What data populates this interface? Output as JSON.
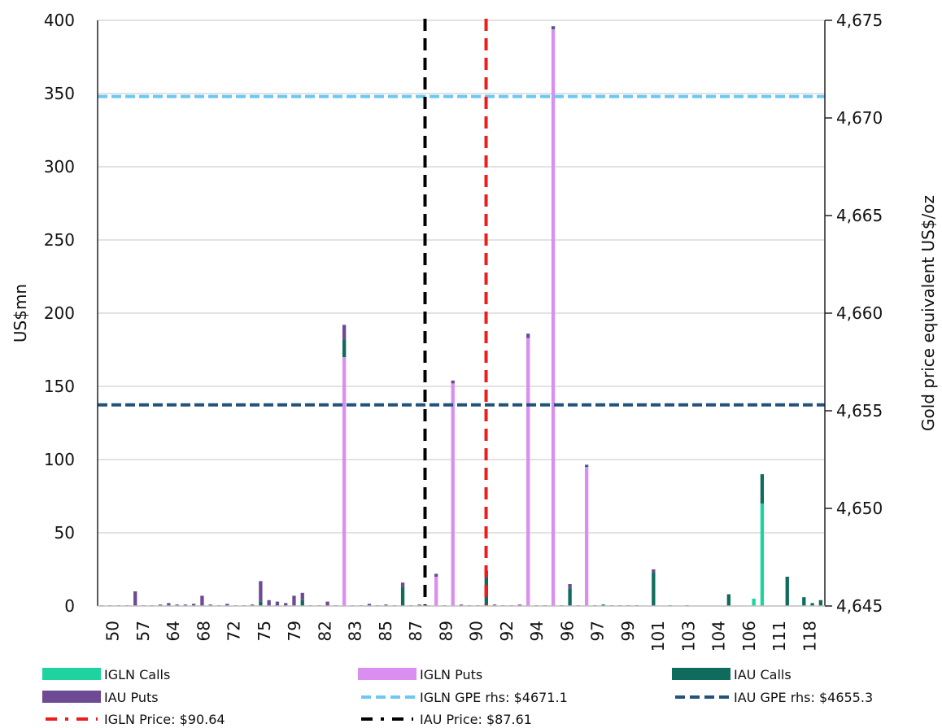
{
  "chart_data": {
    "type": "bar",
    "stacked": true,
    "ylabel": "US$mn",
    "y2label": "Gold price equivalent US$/oz",
    "ylim": [
      0,
      400
    ],
    "y_ticks": [
      "0",
      "50",
      "100",
      "150",
      "200",
      "250",
      "300",
      "350",
      "400"
    ],
    "y2lim": [
      4645,
      4675
    ],
    "y2_ticks": [
      "4,645",
      "4,650",
      "4,655",
      "4,660",
      "4,665",
      "4,670",
      "4,675"
    ],
    "grid": true,
    "legend_position": "bottom",
    "x_tick_labels": [
      "50",
      "57",
      "64",
      "68",
      "72",
      "75",
      "79",
      "82",
      "83",
      "85",
      "87",
      "89",
      "90",
      "92",
      "94",
      "96",
      "97",
      "99",
      "101",
      "103",
      "104",
      "106",
      "111",
      "118"
    ],
    "bar_groups": [
      {
        "iglnCalls": 0,
        "iglnPuts": 0,
        "iauCalls": 0,
        "iauPuts": 0.5
      },
      {
        "iglnCalls": 0,
        "iglnPuts": 0,
        "iauCalls": 0,
        "iauPuts": 0.5
      },
      {
        "iglnCalls": 0,
        "iglnPuts": 0,
        "iauCalls": 0,
        "iauPuts": 0.5
      },
      {
        "iglnCalls": 0,
        "iglnPuts": 0,
        "iauCalls": 0,
        "iauPuts": 0.5
      },
      {
        "iglnCalls": 0,
        "iglnPuts": 0,
        "iauCalls": 0,
        "iauPuts": 10
      },
      {
        "iglnCalls": 0,
        "iglnPuts": 0,
        "iauCalls": 0,
        "iauPuts": 0.5
      },
      {
        "iglnCalls": 0,
        "iglnPuts": 0,
        "iauCalls": 0,
        "iauPuts": 0.5
      },
      {
        "iglnCalls": 0,
        "iglnPuts": 0,
        "iauCalls": 0,
        "iauPuts": 1
      },
      {
        "iglnCalls": 0,
        "iglnPuts": 0,
        "iauCalls": 0,
        "iauPuts": 2
      },
      {
        "iglnCalls": 0,
        "iglnPuts": 0,
        "iauCalls": 0,
        "iauPuts": 1
      },
      {
        "iglnCalls": 0,
        "iglnPuts": 0,
        "iauCalls": 0,
        "iauPuts": 1
      },
      {
        "iglnCalls": 0,
        "iglnPuts": 0,
        "iauCalls": 0,
        "iauPuts": 1.5
      },
      {
        "iglnCalls": 0,
        "iglnPuts": 0,
        "iauCalls": 0,
        "iauPuts": 7
      },
      {
        "iglnCalls": 0,
        "iglnPuts": 0,
        "iauCalls": 0,
        "iauPuts": 1
      },
      {
        "iglnCalls": 0,
        "iglnPuts": 0,
        "iauCalls": 0,
        "iauPuts": 0.5
      },
      {
        "iglnCalls": 0,
        "iglnPuts": 0,
        "iauCalls": 0,
        "iauPuts": 1.5
      },
      {
        "iglnCalls": 0,
        "iglnPuts": 0,
        "iauCalls": 0,
        "iauPuts": 0.5
      },
      {
        "iglnCalls": 0,
        "iglnPuts": 0,
        "iauCalls": 0,
        "iauPuts": 0.5
      },
      {
        "iglnCalls": 0,
        "iglnPuts": 0,
        "iauCalls": 0,
        "iauPuts": 1
      },
      {
        "iglnCalls": 0,
        "iglnPuts": 0,
        "iauCalls": 3,
        "iauPuts": 14
      },
      {
        "iglnCalls": 0,
        "iglnPuts": 0,
        "iauCalls": 0,
        "iauPuts": 4
      },
      {
        "iglnCalls": 0,
        "iglnPuts": 0,
        "iauCalls": 0,
        "iauPuts": 3
      },
      {
        "iglnCalls": 0,
        "iglnPuts": 0,
        "iauCalls": 0,
        "iauPuts": 2
      },
      {
        "iglnCalls": 0,
        "iglnPuts": 0,
        "iauCalls": 0,
        "iauPuts": 7
      },
      {
        "iglnCalls": 0,
        "iglnPuts": 0,
        "iauCalls": 4,
        "iauPuts": 5
      },
      {
        "iglnCalls": 0,
        "iglnPuts": 0,
        "iauCalls": 0,
        "iauPuts": 0.5
      },
      {
        "iglnCalls": 0,
        "iglnPuts": 0,
        "iauCalls": 0,
        "iauPuts": 0.5
      },
      {
        "iglnCalls": 0,
        "iglnPuts": 0,
        "iauCalls": 0,
        "iauPuts": 3
      },
      {
        "iglnCalls": 0,
        "iglnPuts": 0,
        "iauCalls": 0,
        "iauPuts": 0.5
      },
      {
        "iglnCalls": 0,
        "iglnPuts": 170,
        "iauCalls": 12,
        "iauPuts": 10
      },
      {
        "iglnCalls": 0,
        "iglnPuts": 0,
        "iauCalls": 0,
        "iauPuts": 0.5
      },
      {
        "iglnCalls": 0,
        "iglnPuts": 0,
        "iauCalls": 0,
        "iauPuts": 0.5
      },
      {
        "iglnCalls": 0,
        "iglnPuts": 0,
        "iauCalls": 0,
        "iauPuts": 1.5
      },
      {
        "iglnCalls": 0,
        "iglnPuts": 0,
        "iauCalls": 0,
        "iauPuts": 0.5
      },
      {
        "iglnCalls": 0,
        "iglnPuts": 0,
        "iauCalls": 0,
        "iauPuts": 1
      },
      {
        "iglnCalls": 0,
        "iglnPuts": 0,
        "iauCalls": 0,
        "iauPuts": 0.5
      },
      {
        "iglnCalls": 0,
        "iglnPuts": 0,
        "iauCalls": 13,
        "iauPuts": 3
      },
      {
        "iglnCalls": 0,
        "iglnPuts": 0,
        "iauCalls": 0,
        "iauPuts": 0.5
      },
      {
        "iglnCalls": 0,
        "iglnPuts": 0,
        "iauCalls": 0,
        "iauPuts": 1
      },
      {
        "iglnCalls": 0,
        "iglnPuts": 0,
        "iauCalls": 0,
        "iauPuts": 0.5
      },
      {
        "iglnCalls": 0,
        "iglnPuts": 20,
        "iauCalls": 0,
        "iauPuts": 2
      },
      {
        "iglnCalls": 0,
        "iglnPuts": 0,
        "iauCalls": 0,
        "iauPuts": 0.5
      },
      {
        "iglnCalls": 0,
        "iglnPuts": 152,
        "iauCalls": 0,
        "iauPuts": 2
      },
      {
        "iglnCalls": 0,
        "iglnPuts": 0,
        "iauCalls": 0,
        "iauPuts": 1
      },
      {
        "iglnCalls": 0,
        "iglnPuts": 0,
        "iauCalls": 0,
        "iauPuts": 0.5
      },
      {
        "iglnCalls": 0,
        "iglnPuts": 0,
        "iauCalls": 0,
        "iauPuts": 0.5
      },
      {
        "iglnCalls": 0,
        "iglnPuts": 0,
        "iauCalls": 20,
        "iauPuts": 4
      },
      {
        "iglnCalls": 0,
        "iglnPuts": 0,
        "iauCalls": 0,
        "iauPuts": 1
      },
      {
        "iglnCalls": 0,
        "iglnPuts": 0,
        "iauCalls": 0,
        "iauPuts": 0.5
      },
      {
        "iglnCalls": 0,
        "iglnPuts": 0,
        "iauCalls": 0,
        "iauPuts": 0.5
      },
      {
        "iglnCalls": 0,
        "iglnPuts": 0,
        "iauCalls": 0,
        "iauPuts": 1
      },
      {
        "iglnCalls": 0,
        "iglnPuts": 183,
        "iauCalls": 0,
        "iauPuts": 3
      },
      {
        "iglnCalls": 0,
        "iglnPuts": 0,
        "iauCalls": 0,
        "iauPuts": 0.5
      },
      {
        "iglnCalls": 0,
        "iglnPuts": 0,
        "iauCalls": 0,
        "iauPuts": 0.5
      },
      {
        "iglnCalls": 0,
        "iglnPuts": 394,
        "iauCalls": 1,
        "iauPuts": 1
      },
      {
        "iglnCalls": 0,
        "iglnPuts": 0,
        "iauCalls": 0,
        "iauPuts": 0.5
      },
      {
        "iglnCalls": 0,
        "iglnPuts": 0,
        "iauCalls": 12,
        "iauPuts": 3
      },
      {
        "iglnCalls": 0,
        "iglnPuts": 0,
        "iauCalls": 0,
        "iauPuts": 0.5
      },
      {
        "iglnCalls": 0,
        "iglnPuts": 95,
        "iauCalls": 1,
        "iauPuts": 0.5
      },
      {
        "iglnCalls": 0,
        "iglnPuts": 0,
        "iauCalls": 0,
        "iauPuts": 0.5
      },
      {
        "iglnCalls": 0,
        "iglnPuts": 0,
        "iauCalls": 1,
        "iauPuts": 0
      },
      {
        "iglnCalls": 0,
        "iglnPuts": 0,
        "iauCalls": 0,
        "iauPuts": 0.5
      },
      {
        "iglnCalls": 0,
        "iglnPuts": 0,
        "iauCalls": 0,
        "iauPuts": 0.5
      },
      {
        "iglnCalls": 0,
        "iglnPuts": 0,
        "iauCalls": 0,
        "iauPuts": 0.5
      },
      {
        "iglnCalls": 0,
        "iglnPuts": 0,
        "iauCalls": 0.5,
        "iauPuts": 0
      },
      {
        "iglnCalls": 0,
        "iglnPuts": 0,
        "iauCalls": 0,
        "iauPuts": 0
      },
      {
        "iglnCalls": 0,
        "iglnPuts": 0,
        "iauCalls": 23,
        "iauPuts": 2
      },
      {
        "iglnCalls": 0,
        "iglnPuts": 0,
        "iauCalls": 0,
        "iauPuts": 0
      },
      {
        "iglnCalls": 0,
        "iglnPuts": 0,
        "iauCalls": 0.5,
        "iauPuts": 0
      },
      {
        "iglnCalls": 0,
        "iglnPuts": 0,
        "iauCalls": 0,
        "iauPuts": 0
      },
      {
        "iglnCalls": 0,
        "iglnPuts": 0,
        "iauCalls": 0.5,
        "iauPuts": 0
      },
      {
        "iglnCalls": 0,
        "iglnPuts": 0,
        "iauCalls": 0,
        "iauPuts": 0
      },
      {
        "iglnCalls": 0,
        "iglnPuts": 0,
        "iauCalls": 0,
        "iauPuts": 0
      },
      {
        "iglnCalls": 0,
        "iglnPuts": 0,
        "iauCalls": 0,
        "iauPuts": 0
      },
      {
        "iglnCalls": 0,
        "iglnPuts": 0,
        "iauCalls": 0,
        "iauPuts": 0
      },
      {
        "iglnCalls": 0,
        "iglnPuts": 0,
        "iauCalls": 8,
        "iauPuts": 0
      },
      {
        "iglnCalls": 0,
        "iglnPuts": 0,
        "iauCalls": 0,
        "iauPuts": 0
      },
      {
        "iglnCalls": 0,
        "iglnPuts": 0,
        "iauCalls": 0,
        "iauPuts": 0
      },
      {
        "iglnCalls": 5,
        "iglnPuts": 0,
        "iauCalls": 0,
        "iauPuts": 0
      },
      {
        "iglnCalls": 70,
        "iglnPuts": 0,
        "iauCalls": 20,
        "iauPuts": 0
      },
      {
        "iglnCalls": 0,
        "iglnPuts": 0,
        "iauCalls": 0,
        "iauPuts": 0
      },
      {
        "iglnCalls": 0,
        "iglnPuts": 0,
        "iauCalls": 0,
        "iauPuts": 0
      },
      {
        "iglnCalls": 0,
        "iglnPuts": 0,
        "iauCalls": 20,
        "iauPuts": 0
      },
      {
        "iglnCalls": 0,
        "iglnPuts": 0,
        "iauCalls": 0,
        "iauPuts": 0
      },
      {
        "iglnCalls": 0,
        "iglnPuts": 0,
        "iauCalls": 6,
        "iauPuts": 0
      },
      {
        "iglnCalls": 0,
        "iglnPuts": 0,
        "iauCalls": 2,
        "iauPuts": 0
      },
      {
        "iglnCalls": 0,
        "iglnPuts": 0,
        "iauCalls": 4,
        "iauPuts": 0
      }
    ],
    "series": [
      {
        "name": "IGLN Calls",
        "key": "iglnCalls",
        "color": "#1fd3a0"
      },
      {
        "name": "IGLN Puts",
        "key": "iglnPuts",
        "color": "#da8ff0"
      },
      {
        "name": "IAU Calls",
        "key": "iauCalls",
        "color": "#0f6b5b"
      },
      {
        "name": "IAU Puts",
        "key": "iauPuts",
        "color": "#6e4a94"
      }
    ],
    "reference_lines": [
      {
        "name": "IGLN GPE rhs: $4671.1",
        "orientation": "horizontal",
        "axis": "y2",
        "value": 4671.1,
        "color": "#6cc8f2",
        "style": "dashed"
      },
      {
        "name": "IAU GPE rhs: $4655.3",
        "orientation": "horizontal",
        "axis": "y2",
        "value": 4655.3,
        "color": "#23527a",
        "style": "dashed"
      },
      {
        "name": "IGLN Price: $90.64",
        "orientation": "vertical",
        "x_value": 90.64,
        "color": "#ee1c1c",
        "style": "dashed"
      },
      {
        "name": "IAU Price: $87.61",
        "orientation": "vertical",
        "x_value": 87.61,
        "color": "#000000",
        "style": "dashed"
      }
    ],
    "legend": [
      {
        "label": "IGLN Calls",
        "kind": "bar",
        "color": "#1fd3a0"
      },
      {
        "label": "IGLN Puts",
        "kind": "bar",
        "color": "#da8ff0"
      },
      {
        "label": "IAU Calls",
        "kind": "bar",
        "color": "#0f6b5b"
      },
      {
        "label": "IAU Puts",
        "kind": "bar",
        "color": "#6e4a94"
      },
      {
        "label": "IGLN GPE rhs: $4671.1",
        "kind": "dash",
        "color": "#6cc8f2"
      },
      {
        "label": "IAU GPE rhs: $4655.3",
        "kind": "dash",
        "color": "#23527a"
      },
      {
        "label": "IGLN Price: $90.64",
        "kind": "dashdot",
        "color": "#ee1c1c"
      },
      {
        "label": "IAU Price: $87.61",
        "kind": "dashdot",
        "color": "#000000"
      }
    ]
  }
}
